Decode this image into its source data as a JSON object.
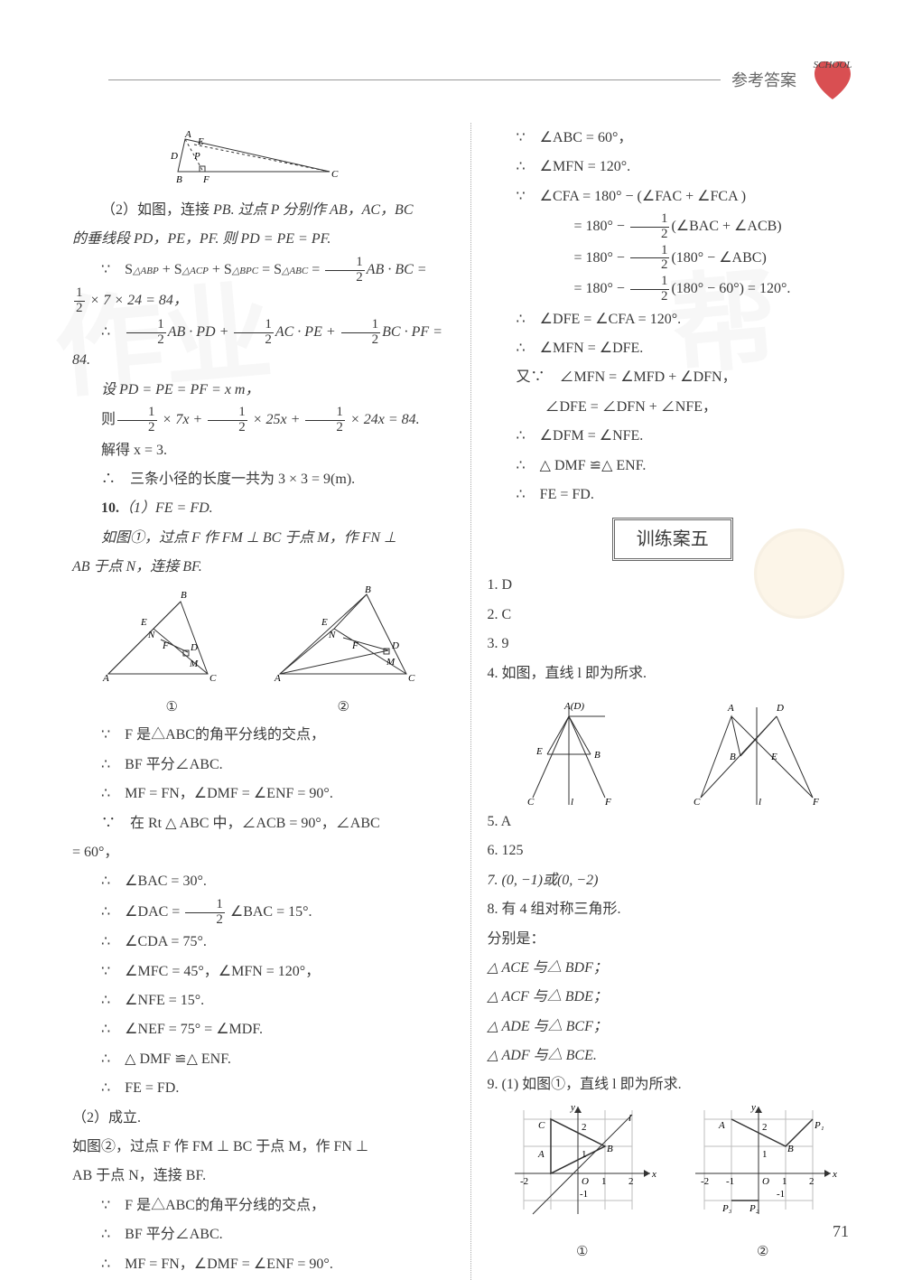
{
  "header": {
    "label": "参考答案",
    "school_text": "SCHOOL"
  },
  "page_number": "71",
  "left_column": {
    "diagram_top": {
      "labels": [
        "A",
        "B",
        "C",
        "D",
        "E",
        "F",
        "P"
      ]
    },
    "p2_prefix": "（2）如图，连接 ",
    "p2_body1": "PB. 过点 P 分别作 AB，AC，BC",
    "p2_line2": "的垂线段 PD，PE，PF. 则 PD = PE = PF.",
    "eq1_prefix": "∵　S",
    "eq1_sub1": "△ABP",
    "eq1_mid1": " + S",
    "eq1_sub2": "△ACP",
    "eq1_mid2": " + S",
    "eq1_sub3": "△BPC",
    "eq1_mid3": " = S",
    "eq1_sub4": "△ABC",
    "eq1_mid4": " = ",
    "eq1_rest": "AB · BC =",
    "eq2": " × 7 × 24 = 84，",
    "eq3_prefix": "∴　",
    "eq3_body": "AB · PD + ",
    "eq3_body2": "AC · PE + ",
    "eq3_body3": "BC · PF = 84.",
    "eq4": "设 PD = PE = PF = x m，",
    "eq5_prefix": "则",
    "eq5_body": " × 7x + ",
    "eq5_body2": " × 25x + ",
    "eq5_body3": " × 24x = 84.",
    "eq6": "解得 x = 3.",
    "eq7": "∴　三条小径的长度一共为 3 × 3 = 9(m).",
    "p10_label": "10.",
    "p10_1": "（1）FE = FD.",
    "p10_2": "如图①，过点 F 作 FM ⊥ BC 于点 M，作 FN ⊥",
    "p10_3": "AB 于点 N，连接 BF.",
    "diagram_pair_labels": {
      "left": "①",
      "right": "②"
    },
    "steps": [
      "∵　F 是△ABC的角平分线的交点，",
      "∴　BF 平分∠ABC.",
      "∴　MF = FN，∠DMF = ∠ENF = 90°.",
      "∵　在 Rt △ ABC 中，∠ACB = 90°，∠ABC",
      "= 60°，",
      "∴　∠BAC = 30°.",
      "∴　∠DAC = _FRAC_ ∠BAC = 15°.",
      "∴　∠CDA = 75°.",
      "∵　∠MFC = 45°，∠MFN = 120°，",
      "∴　∠NFE = 15°.",
      "∴　∠NEF = 75° = ∠MDF.",
      "∴　△ DMF ≌△ ENF.",
      "∴　FE = FD.",
      "（2）成立.",
      "如图②，过点 F 作 FM ⊥ BC 于点 M，作 FN ⊥",
      "AB 于点 N，连接 BF.",
      "∵　F 是△ABC的角平分线的交点，",
      "∴　BF 平分∠ABC.",
      "∴　MF = FN，∠DMF = ∠ENF = 90°."
    ]
  },
  "right_column": {
    "top_steps": [
      "∵　∠ABC = 60°，",
      "∴　∠MFN = 120°.",
      "∵　∠CFA = 180° − (∠FAC + ∠FCA )",
      "　　　　= 180° − _FRAC_(∠BAC + ∠ACB)",
      "　　　　= 180° − _FRAC_(180° − ∠ABC)",
      "　　　　= 180° − _FRAC_(180° − 60°) = 120°.",
      "∴　∠DFE = ∠CFA = 120°.",
      "∴　∠MFN = ∠DFE.",
      "又∵　∠MFN = ∠MFD + ∠DFN，",
      "　　∠DFE = ∠DFN + ∠NFE，",
      "∴　∠DFM = ∠NFE.",
      "∴　△ DMF ≌△ ENF.",
      "∴　FE = FD."
    ],
    "section_title": "训练案五",
    "q1": "1. D",
    "q2": "2. C",
    "q3": "3. 9",
    "q4": "4. 如图，直线 l 即为所求.",
    "q5": "5. A",
    "q6": "6. 125",
    "q7": "7. (0, −1)或(0, −2)",
    "q8a": "8. 有 4 组对称三角形.",
    "q8b": "分别是：",
    "q8_list": [
      "△ ACE 与△ BDF；",
      "△ ACF 与△ BDE；",
      "△ ADE 与△ BCF；",
      "△ ADF 与△ BCE."
    ],
    "q9": "9. (1) 如图①，直线 l 即为所求.",
    "grid_labels": {
      "left": "①",
      "right": "②"
    },
    "grid": {
      "xrange": [
        -2,
        2
      ],
      "yrange": [
        -1,
        2
      ],
      "points_left": {
        "A": [
          -1,
          1
        ],
        "B": [
          1,
          1
        ],
        "C": [
          -1,
          2
        ],
        "O": [
          0,
          0
        ]
      },
      "points_right": {
        "A": [
          -1,
          2
        ],
        "B": [
          1,
          1
        ],
        "P1": [
          2,
          2
        ],
        "P2": [
          0,
          -1
        ],
        "P3": [
          -1,
          -1
        ],
        "O": [
          0,
          0
        ]
      },
      "grid_color": "#bdbdbd",
      "axis_color": "#333"
    }
  },
  "style": {
    "text_color": "#3a3a3a",
    "background": "#ffffff",
    "watermark_color": "rgba(0,0,0,0.03)",
    "font_size_body": 16,
    "font_size_pagenum": 18,
    "line_height": 1.9
  }
}
